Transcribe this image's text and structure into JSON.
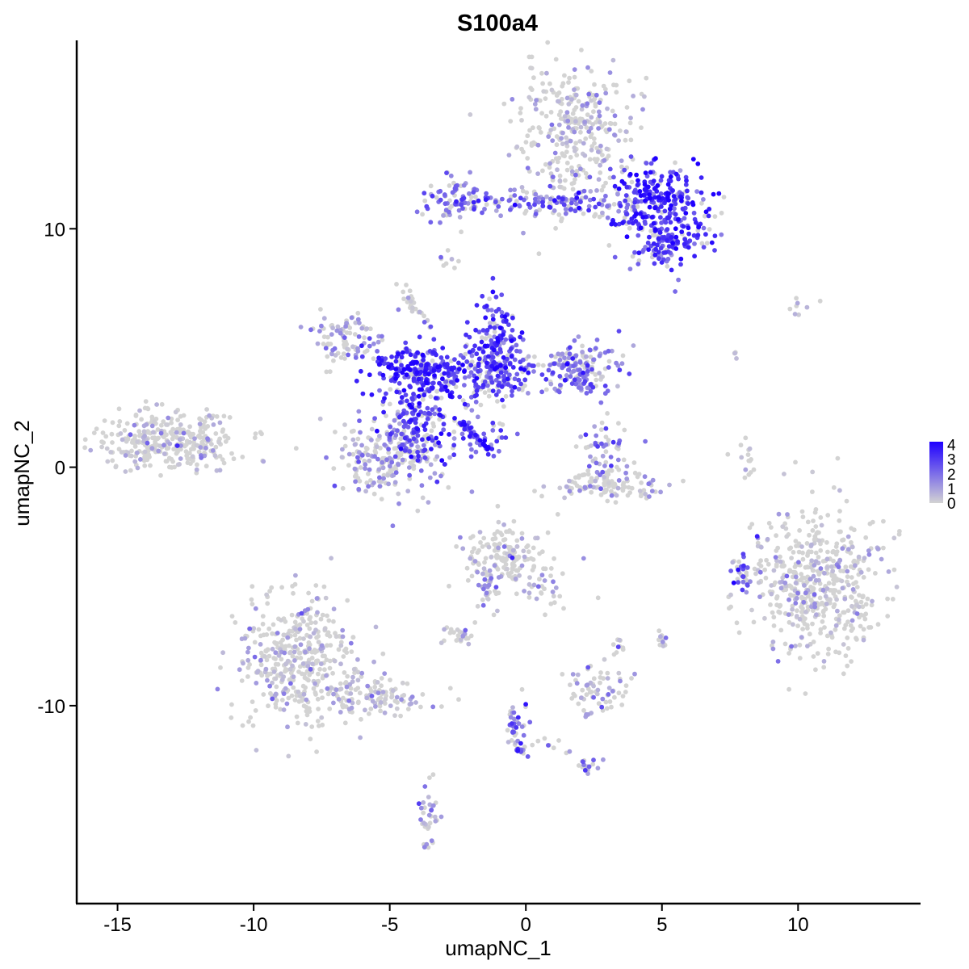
{
  "chart_data": {
    "type": "scatter",
    "title": "S100a4",
    "xlabel": "umapNC_1",
    "ylabel": "umapNC_2",
    "xlim": [
      -16.5,
      14.5
    ],
    "ylim": [
      -18.3,
      17.9
    ],
    "x_ticks": [
      {
        "value": -15,
        "label": "-15"
      },
      {
        "value": -10,
        "label": "-10"
      },
      {
        "value": -5,
        "label": "-5"
      },
      {
        "value": 0,
        "label": "0"
      },
      {
        "value": 5,
        "label": "5"
      },
      {
        "value": 10,
        "label": "10"
      }
    ],
    "y_ticks": [
      {
        "value": -10,
        "label": "-10"
      },
      {
        "value": 0,
        "label": "0"
      },
      {
        "value": 10,
        "label": "10"
      }
    ],
    "grid": false,
    "color_scale": {
      "low": "#d3d3d3",
      "high": "#1f00ff",
      "min": 0,
      "max": 4.2,
      "ticks": [
        "0",
        "1",
        "2",
        "3",
        "4"
      ],
      "placement": "right"
    },
    "clusters": [
      {
        "cx": 1.8,
        "cy": 14.2,
        "sx": 1.1,
        "sy": 1.4,
        "n": 320,
        "expr": 0.4
      },
      {
        "cx": 4.9,
        "cy": 11.4,
        "sx": 0.9,
        "sy": 0.6,
        "n": 190,
        "expr": 3.3
      },
      {
        "cx": 5.3,
        "cy": 9.6,
        "sx": 0.8,
        "sy": 0.5,
        "n": 130,
        "expr": 3.0
      },
      {
        "cx": -2.6,
        "cy": 11.3,
        "sx": 0.5,
        "sy": 0.5,
        "n": 70,
        "expr": 1.8
      },
      {
        "cx": -0.8,
        "cy": 11.1,
        "sx": 1.4,
        "sy": 0.2,
        "n": 60,
        "expr": 2.4
      },
      {
        "cx": 2.3,
        "cy": 11.0,
        "sx": 1.4,
        "sy": 0.4,
        "n": 80,
        "expr": 1.9
      },
      {
        "cx": 4.8,
        "cy": 9.3,
        "sx": 0.5,
        "sy": 0.7,
        "n": 40,
        "expr": 2.6
      },
      {
        "cx": -2.9,
        "cy": 8.6,
        "sx": 0.2,
        "sy": 0.2,
        "n": 8,
        "expr": 1.0
      },
      {
        "cx": -4.0,
        "cy": 4.0,
        "sx": 0.9,
        "sy": 0.6,
        "n": 230,
        "expr": 3.3
      },
      {
        "cx": -1.1,
        "cy": 5.3,
        "sx": 0.5,
        "sy": 0.9,
        "n": 140,
        "expr": 3.0
      },
      {
        "cx": 1.9,
        "cy": 4.1,
        "sx": 0.8,
        "sy": 0.6,
        "n": 170,
        "expr": 1.9
      },
      {
        "cx": -1.5,
        "cy": 3.8,
        "sx": 1.0,
        "sy": 0.6,
        "n": 160,
        "expr": 2.6
      },
      {
        "cx": -3.9,
        "cy": 2.0,
        "sx": 0.6,
        "sy": 1.0,
        "n": 150,
        "expr": 3.1
      },
      {
        "cx": -5.0,
        "cy": 0.4,
        "sx": 1.0,
        "sy": 0.8,
        "n": 230,
        "expr": 1.0
      },
      {
        "cx": -6.7,
        "cy": 5.4,
        "sx": 0.6,
        "sy": 0.5,
        "n": 90,
        "expr": 1.0
      },
      {
        "cx": -4.4,
        "cy": 7.1,
        "sx": 0.2,
        "sy": 0.3,
        "n": 15,
        "expr": 0.6
      },
      {
        "cx": -1.7,
        "cy": 1.2,
        "sx": 0.6,
        "sy": 0.5,
        "n": 35,
        "expr": 2.4
      },
      {
        "cx": -13.0,
        "cy": 1.1,
        "sx": 1.3,
        "sy": 0.6,
        "n": 330,
        "expr": 0.2
      },
      {
        "cx": 2.9,
        "cy": 0.6,
        "sx": 0.5,
        "sy": 0.7,
        "n": 60,
        "expr": 1.8
      },
      {
        "cx": 3.0,
        "cy": -0.8,
        "sx": 1.1,
        "sy": 0.3,
        "n": 100,
        "expr": 0.3
      },
      {
        "cx": 8.1,
        "cy": 0.3,
        "sx": 0.2,
        "sy": 0.5,
        "n": 15,
        "expr": 0.4
      },
      {
        "cx": 10.7,
        "cy": -4.8,
        "sx": 1.2,
        "sy": 1.6,
        "n": 520,
        "expr": 0.2
      },
      {
        "cx": 7.9,
        "cy": -4.4,
        "sx": 0.2,
        "sy": 0.4,
        "n": 25,
        "expr": 2.8
      },
      {
        "cx": -0.7,
        "cy": -3.8,
        "sx": 0.8,
        "sy": 0.7,
        "n": 150,
        "expr": 0.3
      },
      {
        "cx": 0.9,
        "cy": -5.0,
        "sx": 0.6,
        "sy": 0.4,
        "n": 30,
        "expr": 0.5
      },
      {
        "cx": -1.4,
        "cy": -5.3,
        "sx": 0.3,
        "sy": 0.6,
        "n": 20,
        "expr": 1.0
      },
      {
        "cx": -2.5,
        "cy": -7.0,
        "sx": 0.3,
        "sy": 0.2,
        "n": 25,
        "expr": 0.2
      },
      {
        "cx": -8.4,
        "cy": -8.2,
        "sx": 1.1,
        "sy": 1.4,
        "n": 420,
        "expr": 0.3
      },
      {
        "cx": -5.7,
        "cy": -9.6,
        "sx": 1.1,
        "sy": 0.4,
        "n": 110,
        "expr": 0.6
      },
      {
        "cx": 2.6,
        "cy": -9.2,
        "sx": 0.6,
        "sy": 0.5,
        "n": 70,
        "expr": 0.3
      },
      {
        "cx": 3.4,
        "cy": -7.6,
        "sx": 0.1,
        "sy": 0.2,
        "n": 10,
        "expr": 0.2
      },
      {
        "cx": 5.0,
        "cy": -7.3,
        "sx": 0.1,
        "sy": 0.2,
        "n": 12,
        "expr": 0.6
      },
      {
        "cx": -0.3,
        "cy": -11.0,
        "sx": 0.2,
        "sy": 0.8,
        "n": 35,
        "expr": 1.8
      },
      {
        "cx": 2.2,
        "cy": -12.5,
        "sx": 0.3,
        "sy": 0.2,
        "n": 18,
        "expr": 1.0
      },
      {
        "cx": -3.6,
        "cy": -14.7,
        "sx": 0.2,
        "sy": 0.8,
        "n": 35,
        "expr": 1.2
      },
      {
        "cx": 0.9,
        "cy": -11.7,
        "sx": 0.4,
        "sy": 0.2,
        "n": 10,
        "expr": 0.2
      },
      {
        "cx": 10.0,
        "cy": 6.7,
        "sx": 0.3,
        "sy": 0.2,
        "n": 8,
        "expr": 0.1
      },
      {
        "cx": 7.8,
        "cy": 4.7,
        "sx": 0.1,
        "sy": 0.1,
        "n": 4,
        "expr": 0.2
      }
    ],
    "streaks": [
      {
        "x1": -2.4,
        "y1": 1.9,
        "x2": -1.3,
        "y2": 0.7,
        "n": 45,
        "expr": 3.0
      },
      {
        "x1": -4.3,
        "y1": 7.2,
        "x2": -3.5,
        "y2": 5.8,
        "n": 12,
        "expr": 1.2
      },
      {
        "x1": -1.3,
        "y1": -4.5,
        "x2": -1.6,
        "y2": -6.2,
        "n": 12,
        "expr": 1.0
      },
      {
        "x1": -0.6,
        "y1": -10.1,
        "x2": -0.2,
        "y2": -12.0,
        "n": 15,
        "expr": 2.0
      },
      {
        "x1": 0.5,
        "y1": 11.2,
        "x2": 1.9,
        "y2": 11.2,
        "n": 25,
        "expr": 2.0
      },
      {
        "x1": 3.2,
        "y1": 10.3,
        "x2": 4.4,
        "y2": 10.2,
        "n": 15,
        "expr": 3.0
      }
    ],
    "highlights": [
      {
        "x": -0.4,
        "y": 11.0,
        "v": 4.2
      },
      {
        "x": 5.2,
        "y": 11.5,
        "v": 4.2
      },
      {
        "x": 4.9,
        "y": 11.3,
        "v": 4.1
      },
      {
        "x": -3.7,
        "y": 4.0,
        "v": 4.0
      },
      {
        "x": -1.2,
        "y": 6.2,
        "v": 3.9
      },
      {
        "x": 7.8,
        "y": -4.3,
        "v": 4.0
      },
      {
        "x": -0.3,
        "y": -11.9,
        "v": 3.8
      },
      {
        "x": -12.8,
        "y": 0.9,
        "v": 3.4
      },
      {
        "x": 8.5,
        "y": -2.9,
        "v": 3.6
      },
      {
        "x": -0.5,
        "y": -3.8,
        "v": 3.5
      }
    ]
  }
}
